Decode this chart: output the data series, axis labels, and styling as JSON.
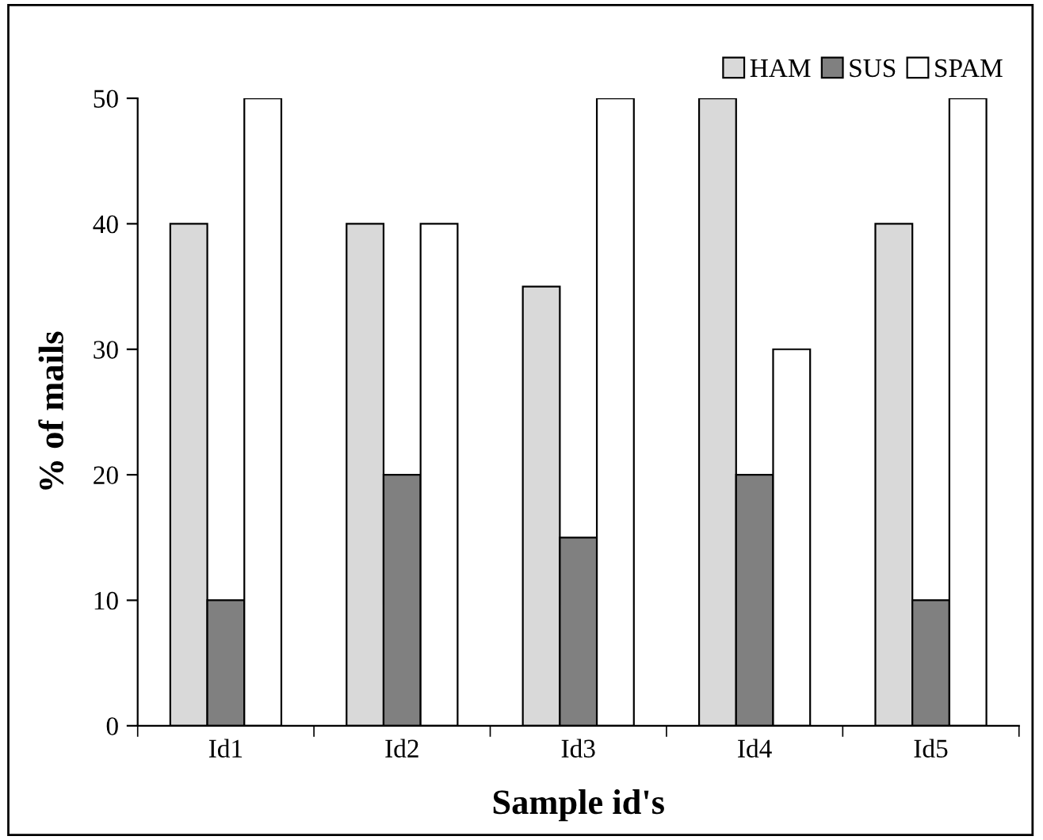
{
  "chart_data": {
    "type": "bar",
    "xlabel": "Sample id's",
    "ylabel": "% of mails",
    "categories": [
      "Id1",
      "Id2",
      "Id3",
      "Id4",
      "Id5"
    ],
    "series": [
      {
        "name": "HAM",
        "color": "#d9d9d9",
        "values": [
          40,
          40,
          35,
          50,
          40
        ]
      },
      {
        "name": "SUS",
        "color": "#808080",
        "values": [
          10,
          20,
          15,
          20,
          10
        ]
      },
      {
        "name": "SPAM",
        "color": "#ffffff",
        "values": [
          50,
          40,
          50,
          30,
          50
        ]
      }
    ],
    "ylim": [
      0,
      50
    ],
    "yticks": [
      0,
      10,
      20,
      30,
      40,
      50
    ],
    "grid": false,
    "legend": "top right"
  }
}
